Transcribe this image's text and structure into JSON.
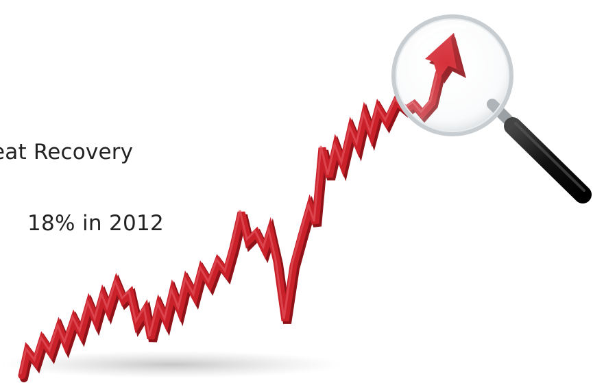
{
  "slide": {
    "line1": "eat Recovery",
    "line2": "18% in 2012"
  },
  "graphic": {
    "trend_icon": "rising-stock-arrow",
    "magnifier_icon": "magnifying-glass",
    "arrow_color": "#c9202a",
    "arrow_shade_color": "#8e1218",
    "handle_color": "#1b1b1b"
  }
}
